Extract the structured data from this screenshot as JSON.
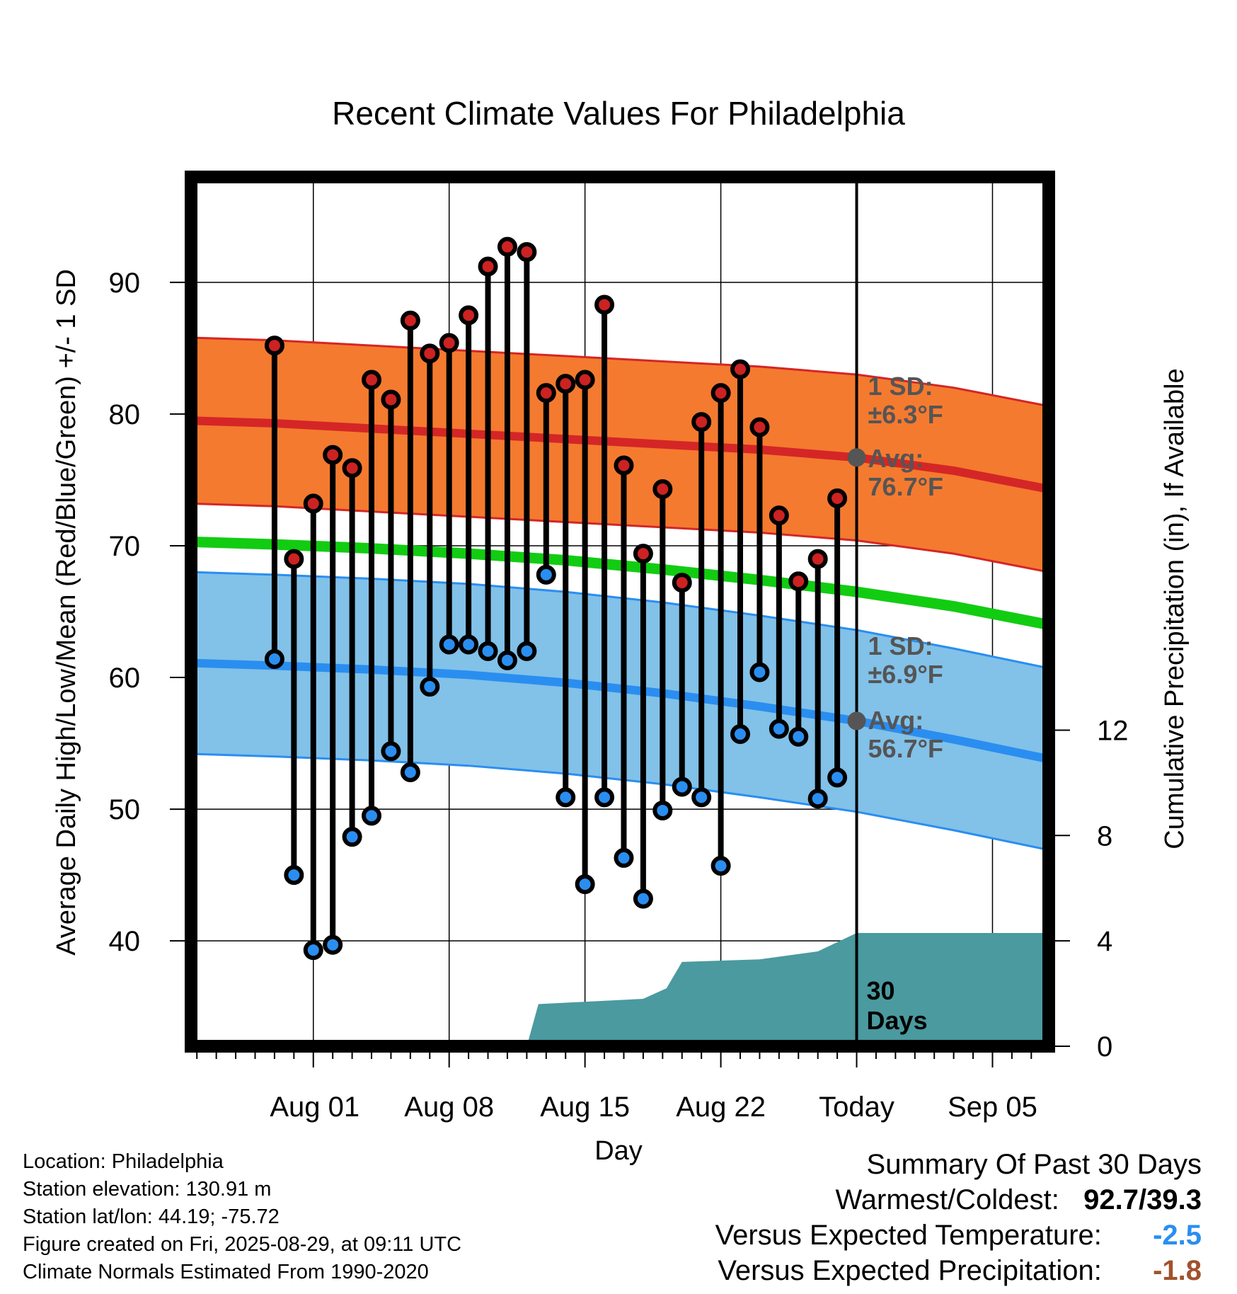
{
  "chart_data": {
    "type": "line",
    "title": "Recent Climate Values For Philadelphia",
    "xlabel": "Day",
    "ylabel": "Average Daily High/Low/Mean (Red/Blue/Green) +/- 1 SD",
    "y2label": "Cumulative Precipitation (in), If Available",
    "x_tick_labels": [
      "Aug 01",
      "Aug 08",
      "Aug 15",
      "Aug 22",
      "Today",
      "Sep 05"
    ],
    "y_ticks": [
      40,
      50,
      60,
      70,
      80,
      90
    ],
    "y2_ticks": [
      0,
      4,
      8,
      12
    ],
    "ylim": [
      32,
      98
    ],
    "y2lim": [
      0,
      33
    ],
    "xlim_days": [
      -34.3,
      9.9
    ],
    "x_tick_days": [
      -28,
      -21,
      -14,
      -7,
      0,
      7
    ],
    "dates_day_offset": [
      -30,
      -29,
      -28,
      -27,
      -26,
      -25,
      -24,
      -23,
      -22,
      -21,
      -20,
      -19,
      -18,
      -17,
      -16,
      -15,
      -14,
      -13,
      -12,
      -11,
      -10,
      -9,
      -8,
      -7,
      -6,
      -5,
      -4,
      -3,
      -2,
      -1
    ],
    "daily_high": [
      85.2,
      69.0,
      73.2,
      76.9,
      75.9,
      82.6,
      81.1,
      87.1,
      84.6,
      85.4,
      87.5,
      91.2,
      92.7,
      92.3,
      81.6,
      82.3,
      82.6,
      88.3,
      76.1,
      69.4,
      74.3,
      67.2,
      79.4,
      81.6,
      83.4,
      79.0,
      72.3,
      67.3,
      69.0,
      73.6
    ],
    "daily_low": [
      61.4,
      45.0,
      39.3,
      39.7,
      47.9,
      49.5,
      54.4,
      52.8,
      59.3,
      62.5,
      62.5,
      62.0,
      61.3,
      62.0,
      67.8,
      50.9,
      44.3,
      50.9,
      46.3,
      43.2,
      49.9,
      51.7,
      50.9,
      45.7,
      55.7,
      60.4,
      56.1,
      55.5,
      50.8,
      52.4
    ],
    "normals": {
      "days": [
        -34.3,
        -30,
        -25,
        -20,
        -15,
        -10,
        -5,
        0,
        5,
        9.9
      ],
      "avg_high": [
        79.5,
        79.3,
        78.9,
        78.5,
        78.1,
        77.7,
        77.3,
        76.7,
        75.7,
        74.3
      ],
      "avg_low": [
        61.1,
        60.9,
        60.6,
        60.2,
        59.6,
        58.8,
        57.8,
        56.7,
        55.3,
        53.8
      ],
      "avg_mean": [
        70.3,
        70.1,
        69.8,
        69.4,
        68.9,
        68.2,
        67.4,
        66.5,
        65.4,
        64.0
      ],
      "high_sd": 6.3,
      "low_sd": 6.9
    },
    "precip_cumulative": {
      "days": [
        -17,
        -16.4,
        -11,
        -9.8,
        -9,
        -5,
        -3,
        -2,
        0,
        9.9
      ],
      "values": [
        0,
        1.6,
        1.8,
        2.2,
        3.2,
        3.3,
        3.5,
        3.6,
        4.3,
        4.3
      ]
    },
    "annotations": {
      "high_sd_label": [
        "1 SD:",
        "±6.3°F"
      ],
      "high_avg_label": [
        "Avg:",
        "76.7°F"
      ],
      "low_sd_label": [
        "1 SD:",
        "±6.9°F"
      ],
      "low_avg_label": [
        "Avg:",
        "56.7°F"
      ],
      "precip_label": [
        "30",
        "Days"
      ]
    },
    "colors": {
      "high_band": "#f47a2f",
      "high_line": "#d42626",
      "low_band": "#82c1e8",
      "low_line": "#2a8ef0",
      "mean_line": "#12cc12",
      "precip": "#4a9aa0",
      "high_dot": "#cc2222",
      "low_dot": "#2a8ef0"
    }
  },
  "footer": {
    "location": "Location: Philadelphia",
    "elevation": "Station elevation: 130.91 m",
    "latlon": "Station lat/lon: 44.19; -75.72",
    "created": "Figure created on Fri, 2025-08-29, at 09:11 UTC",
    "normals": "Climate Normals Estimated From 1990-2020"
  },
  "summary": {
    "heading": "Summary Of Past 30 Days",
    "warm_cold_label": "Warmest/Coldest:",
    "warm_cold_value": "92.7/39.3",
    "temp_label": "Versus Expected Temperature:",
    "temp_value": "-2.5",
    "temp_color": "#2a8ef0",
    "precip_label": "Versus Expected Precipitation:",
    "precip_value": "-1.8",
    "precip_color": "#a0522d"
  }
}
